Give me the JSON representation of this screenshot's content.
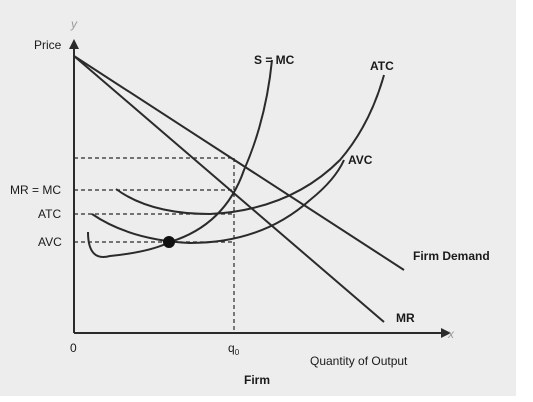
{
  "diagram": {
    "axis_y_label": "Price",
    "axis_y_letter": "y",
    "axis_x_letter": "x",
    "axis_x_label": "Quantity of Output",
    "origin_label": "0",
    "q0_label": "q",
    "q0_subscript": "0",
    "caption": "Firm",
    "curves": {
      "supply_mc": "S = MC",
      "atc": "ATC",
      "avc": "AVC",
      "demand": "Firm Demand",
      "mr": "MR"
    },
    "price_levels": {
      "mr_mc": "MR = MC",
      "atc": "ATC",
      "avc": "AVC"
    },
    "colors": {
      "background": "#ededed",
      "line": "#2b2b2b",
      "axis_letter": "#9a9a9a"
    }
  }
}
